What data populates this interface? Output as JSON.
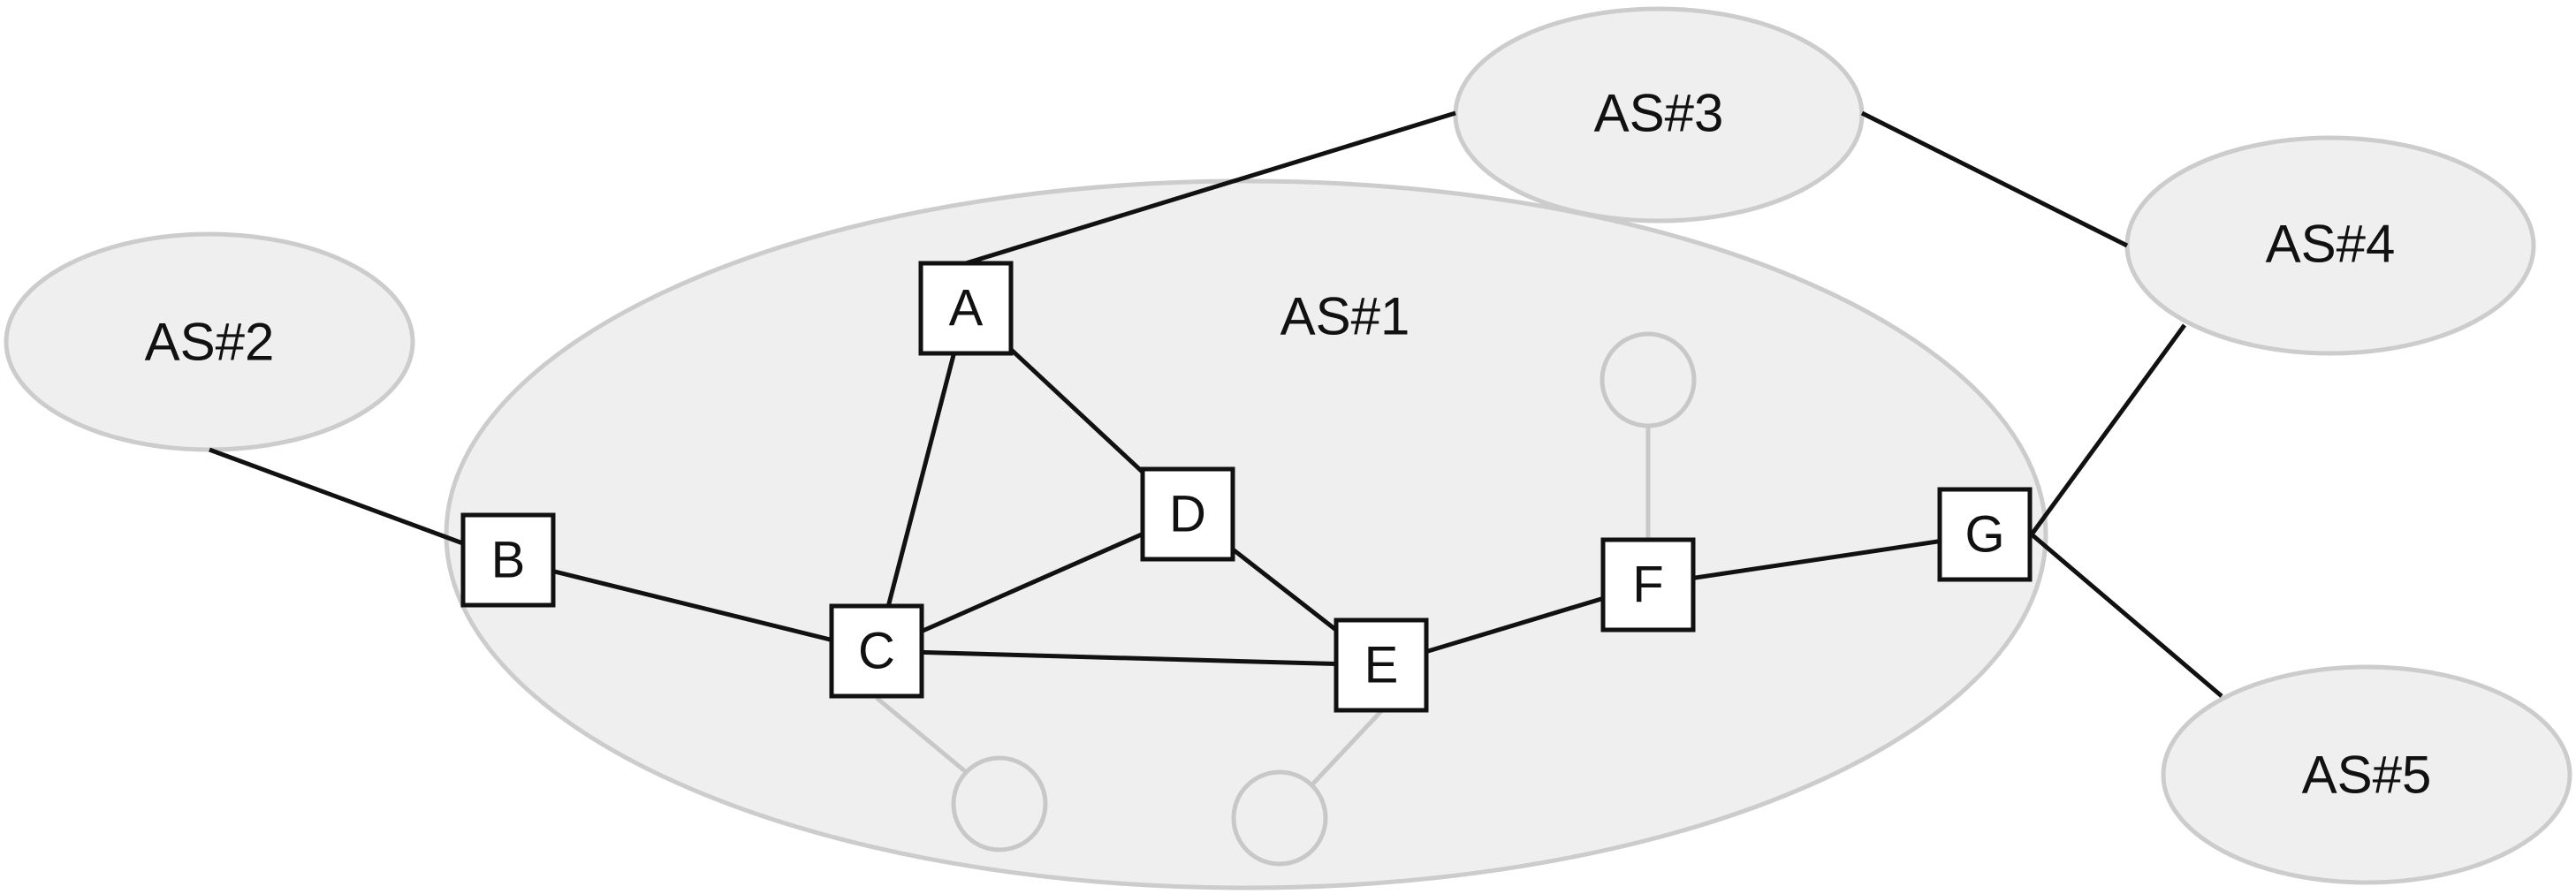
{
  "diagram": {
    "autonomous_systems": [
      {
        "id": "as1",
        "label": "AS#1"
      },
      {
        "id": "as2",
        "label": "AS#2"
      },
      {
        "id": "as3",
        "label": "AS#3"
      },
      {
        "id": "as4",
        "label": "AS#4"
      },
      {
        "id": "as5",
        "label": "AS#5"
      }
    ],
    "routers": [
      {
        "id": "A",
        "label": "A",
        "as": "AS#1"
      },
      {
        "id": "B",
        "label": "B",
        "as": "AS#1"
      },
      {
        "id": "C",
        "label": "C",
        "as": "AS#1"
      },
      {
        "id": "D",
        "label": "D",
        "as": "AS#1"
      },
      {
        "id": "E",
        "label": "E",
        "as": "AS#1"
      },
      {
        "id": "F",
        "label": "F",
        "as": "AS#1"
      },
      {
        "id": "G",
        "label": "G",
        "as": "AS#1"
      }
    ],
    "internal_links": [
      [
        "A",
        "C"
      ],
      [
        "A",
        "D"
      ],
      [
        "B",
        "C"
      ],
      [
        "C",
        "D"
      ],
      [
        "C",
        "E"
      ],
      [
        "D",
        "E"
      ],
      [
        "E",
        "F"
      ],
      [
        "F",
        "G"
      ]
    ],
    "external_links": [
      [
        "A",
        "AS#3"
      ],
      [
        "B",
        "AS#2"
      ],
      [
        "G",
        "AS#4"
      ],
      [
        "G",
        "AS#5"
      ],
      [
        "AS#3",
        "AS#4"
      ]
    ],
    "hosts": [
      {
        "id": "host-c",
        "attached_to": "C"
      },
      {
        "id": "host-e",
        "attached_to": "E"
      },
      {
        "id": "host-f",
        "attached_to": "F"
      }
    ],
    "colors": {
      "as_fill": "#efefef",
      "as_border": "#cccccc",
      "link": "#111111",
      "host_link": "#c8c8c8",
      "router_fill": "#ffffff"
    }
  }
}
